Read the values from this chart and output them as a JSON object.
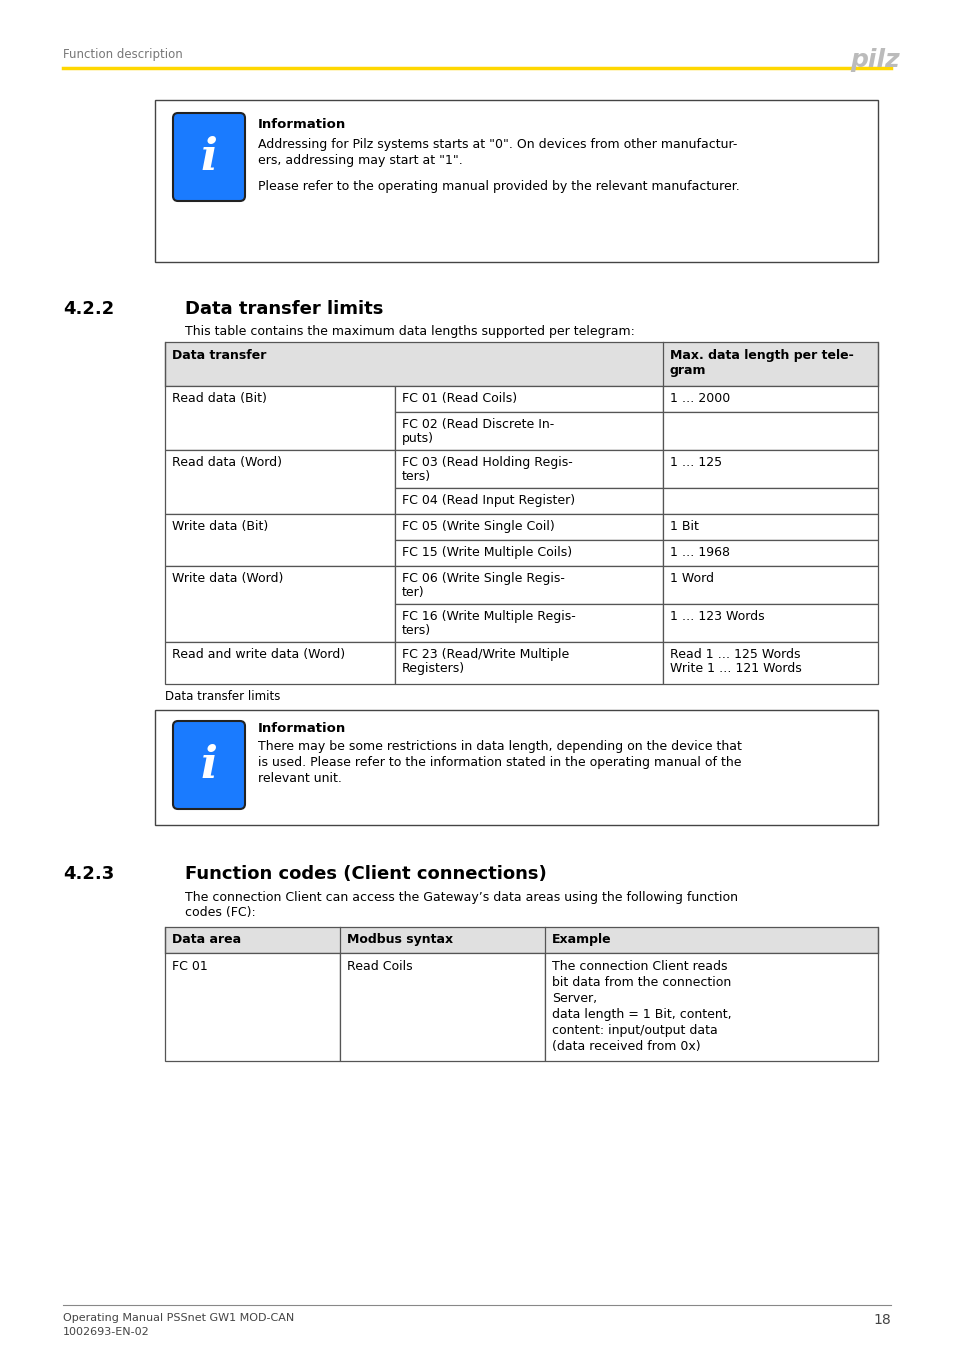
{
  "page_title": "Function description",
  "logo_text": "pilz",
  "header_line_color": "#FFD700",
  "footer_line1": "Operating Manual PSSnet GW1 MOD-CAN",
  "footer_line2": "1002693-EN-02",
  "footer_page": "18",
  "info_box1": {
    "title": "Information",
    "lines": [
      "Addressing for Pilz systems starts at \"0\". On devices from other manufactur-",
      "ers, addressing may start at \"1\".",
      "",
      "Please refer to the operating manual provided by the relevant manufacturer."
    ]
  },
  "section_422_num": "4.2.2",
  "section_422_title": "Data transfer limits",
  "section_422_intro": "This table contains the maximum data lengths supported per telegram:",
  "table1_col_headers": [
    "Data transfer",
    "Max. data length per tele-\ngram"
  ],
  "table1_rows": [
    [
      "Read data (Bit)",
      "FC 01 (Read Coils)",
      "1 … 2000"
    ],
    [
      "",
      "FC 02 (Read Discrete In-\nputs)",
      ""
    ],
    [
      "Read data (Word)",
      "FC 03 (Read Holding Regis-\nters)",
      "1 … 125"
    ],
    [
      "",
      "FC 04 (Read Input Register)",
      ""
    ],
    [
      "Write data (Bit)",
      "FC 05 (Write Single Coil)",
      "1 Bit"
    ],
    [
      "",
      "FC 15 (Write Multiple Coils)",
      "1 … 1968"
    ],
    [
      "Write data (Word)",
      "FC 06 (Write Single Regis-\nter)",
      "1 Word"
    ],
    [
      "",
      "FC 16 (Write Multiple Regis-\nters)",
      "1 … 123 Words"
    ],
    [
      "Read and write data (Word)",
      "FC 23 (Read/Write Multiple\nRegisters)",
      "Read 1 … 125 Words\nWrite 1 … 121 Words"
    ]
  ],
  "table1_caption": "Data transfer limits",
  "info_box2": {
    "title": "Information",
    "lines": [
      "There may be some restrictions in data length, depending on the device that",
      "is used. Please refer to the information stated in the operating manual of the",
      "relevant unit."
    ]
  },
  "section_423_num": "4.2.3",
  "section_423_title": "Function codes (Client connections)",
  "section_423_intro_1": "The connection Client can access the Gateway’s data areas using the following function",
  "section_423_intro_2": "codes (FC):",
  "table2_col_headers": [
    "Data area",
    "Modbus syntax",
    "Example"
  ],
  "table2_rows": [
    [
      "FC 01",
      "Read Coils",
      "The connection Client reads\nbit data from the connection\nServer,\ndata length = 1 Bit, content,\ncontent: input/output data\n(data received from 0x)"
    ]
  ],
  "bg_color": "#ffffff",
  "text_color": "#000000",
  "header_text_color": "#777777",
  "table_border_color": "#555555",
  "table_header_bg": "#E0E0E0",
  "box_border_color": "#444444",
  "icon_color": "#1a7bff",
  "icon_border_color": "#222222",
  "yellow_line_color": "#FFD700"
}
